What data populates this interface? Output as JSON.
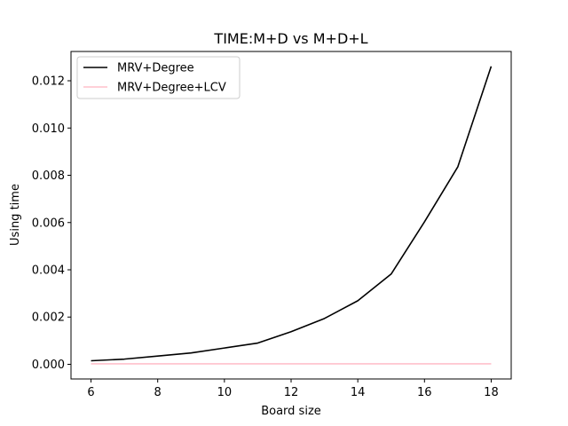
{
  "chart_data": {
    "type": "line",
    "title": "TIME:M+D vs M+D+L",
    "xlabel": "Board size",
    "ylabel": "Using time",
    "x": [
      6,
      7,
      8,
      9,
      10,
      11,
      12,
      13,
      14,
      15,
      16,
      17,
      18
    ],
    "series": [
      {
        "name": "MRV+Degree",
        "color": "#000000",
        "values": [
          0.00015,
          0.00022,
          0.00035,
          0.00048,
          0.00069,
          0.0009,
          0.00138,
          0.00194,
          0.00269,
          0.00382,
          0.00603,
          0.00836,
          0.01261
        ]
      },
      {
        "name": "MRV+Degree+LCV",
        "color": "#ffc0cb",
        "values": [
          2e-05,
          2e-05,
          2e-05,
          2e-05,
          2e-05,
          2e-05,
          2e-05,
          2e-05,
          2e-05,
          2e-05,
          2e-05,
          2e-05,
          2e-05
        ]
      }
    ],
    "xlim": [
      5.4,
      18.6
    ],
    "ylim": [
      -0.00062,
      0.01324
    ],
    "xticks": [
      6,
      8,
      10,
      12,
      14,
      16,
      18
    ],
    "xtick_labels": [
      "6",
      "8",
      "10",
      "12",
      "14",
      "16",
      "18"
    ],
    "yticks": [
      0,
      0.002,
      0.004,
      0.006,
      0.008,
      0.01,
      0.012
    ],
    "ytick_labels": [
      "0.000",
      "0.002",
      "0.004",
      "0.006",
      "0.008",
      "0.010",
      "0.012"
    ],
    "grid": false,
    "legend_position": "top-left"
  }
}
